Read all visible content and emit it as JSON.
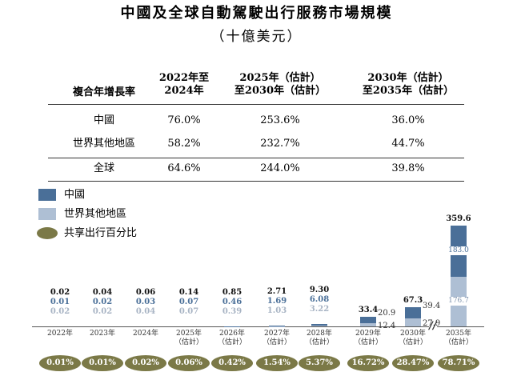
{
  "title": "中國及全球自動駕駛出行服務市場規模",
  "subtitle": "（十億美元）",
  "table": {
    "header": [
      "複合年增長率",
      "2022年至\n2024年",
      "2025年（估計）\n至2030年（估計）",
      "2030年（估計）\n至2035年（估計）"
    ],
    "rows": [
      [
        "中國",
        "76.0%",
        "253.6%",
        "36.0%"
      ],
      [
        "世界其他地區",
        "58.2%",
        "232.7%",
        "44.7%"
      ],
      [
        "全球",
        "64.6%",
        "244.0%",
        "39.8%"
      ]
    ]
  },
  "chart_data": {
    "type": "bar",
    "stacked": true,
    "categories": [
      "2022年",
      "2023年",
      "2024年",
      "2025年\n（估計）",
      "2026年\n（估計）",
      "2027年\n（估計）",
      "2028年\n（估計）",
      "2029年\n（估計）",
      "2030年\n（估計）",
      "2035年\n（估計）"
    ],
    "series": [
      {
        "name": "世界其他地區",
        "color": "#aebfd4",
        "values": [
          0.02,
          0.02,
          0.04,
          0.07,
          0.39,
          1.03,
          3.22,
          12.4,
          27.9,
          176.7
        ]
      },
      {
        "name": "中國",
        "color": "#4a6f98",
        "values": [
          0.01,
          0.02,
          0.03,
          0.07,
          0.46,
          1.69,
          6.08,
          20.9,
          39.4,
          183
        ],
        "value_labels": [
          "0.01",
          "0.02",
          "0.03",
          "0.07",
          "0.46",
          "1.69",
          "6.08",
          "20.9",
          "39.4",
          "183.0"
        ]
      }
    ],
    "totals": {
      "values": [
        0.02,
        0.04,
        0.06,
        0.14,
        0.85,
        2.71,
        9.3,
        33.4,
        67.3,
        359.6
      ],
      "value_labels": [
        "0.02",
        "0.04",
        "0.06",
        "0.14",
        "0.85",
        "2.71",
        "9.30",
        "33.4",
        "67.3",
        "359.6"
      ]
    },
    "share": {
      "name": "共享出行百分比",
      "color": "#7b7947",
      "values": [
        0.01,
        0.01,
        0.02,
        0.06,
        0.42,
        1.54,
        5.37,
        16.72,
        28.47,
        78.71
      ],
      "value_labels": [
        "0.01%",
        "0.01%",
        "0.02%",
        "0.06%",
        "0.42%",
        "1.54%",
        "5.37%",
        "16.72%",
        "28.47%",
        "78.71%"
      ]
    }
  }
}
